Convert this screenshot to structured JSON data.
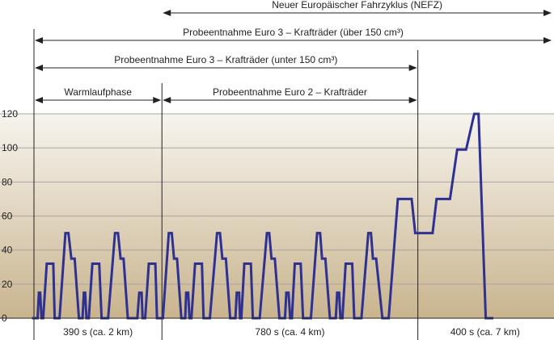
{
  "colors": {
    "line": "#2e3192",
    "grid": "#a6a6a6",
    "bg_top": "#f7f4ee",
    "bg_bottom": "#c9b48e",
    "rule": "#222222"
  },
  "chart_data": {
    "type": "line",
    "xlabel": "",
    "ylabel": "",
    "xlim": [
      0,
      1580
    ],
    "ylim": [
      0,
      120
    ],
    "yticks": [
      0,
      20,
      40,
      60,
      80,
      100,
      120
    ],
    "grid": true,
    "series": [
      {
        "values": [
          [
            -6,
            0
          ],
          [
            11,
            0
          ],
          [
            15,
            15
          ],
          [
            19,
            15
          ],
          [
            23,
            0
          ],
          [
            28,
            0
          ],
          [
            39,
            32
          ],
          [
            59,
            32
          ],
          [
            63,
            0
          ],
          [
            78,
            0
          ],
          [
            96,
            50
          ],
          [
            105,
            50
          ],
          [
            114,
            35
          ],
          [
            124,
            35
          ],
          [
            137,
            0
          ],
          [
            148,
            0
          ],
          [
            152,
            15
          ],
          [
            156,
            15
          ],
          [
            160,
            0
          ],
          [
            167,
            0
          ],
          [
            178,
            32
          ],
          [
            199,
            32
          ],
          [
            206,
            0
          ],
          [
            226,
            0
          ],
          [
            247,
            50
          ],
          [
            256,
            50
          ],
          [
            264,
            35
          ],
          [
            273,
            35
          ],
          [
            286,
            0
          ],
          [
            315,
            0
          ],
          [
            321,
            15
          ],
          [
            328,
            15
          ],
          [
            331,
            0
          ],
          [
            339,
            0
          ],
          [
            350,
            32
          ],
          [
            370,
            32
          ],
          [
            375,
            0
          ],
          [
            393,
            0
          ],
          [
            411,
            50
          ],
          [
            420,
            50
          ],
          [
            427,
            35
          ],
          [
            436,
            35
          ],
          [
            449,
            0
          ],
          [
            461,
            0
          ],
          [
            464,
            15
          ],
          [
            470,
            15
          ],
          [
            474,
            0
          ],
          [
            480,
            0
          ],
          [
            491,
            32
          ],
          [
            512,
            32
          ],
          [
            517,
            0
          ],
          [
            536,
            0
          ],
          [
            558,
            50
          ],
          [
            567,
            50
          ],
          [
            574,
            35
          ],
          [
            585,
            35
          ],
          [
            598,
            0
          ],
          [
            614,
            0
          ],
          [
            618,
            15
          ],
          [
            625,
            15
          ],
          [
            628,
            0
          ],
          [
            632,
            0
          ],
          [
            641,
            32
          ],
          [
            661,
            32
          ],
          [
            667,
            0
          ],
          [
            688,
            0
          ],
          [
            710,
            50
          ],
          [
            717,
            50
          ],
          [
            724,
            35
          ],
          [
            734,
            35
          ],
          [
            748,
            0
          ],
          [
            765,
            0
          ],
          [
            769,
            15
          ],
          [
            776,
            15
          ],
          [
            781,
            0
          ],
          [
            786,
            0
          ],
          [
            795,
            32
          ],
          [
            813,
            32
          ],
          [
            820,
            0
          ],
          [
            844,
            0
          ],
          [
            863,
            50
          ],
          [
            872,
            50
          ],
          [
            878,
            35
          ],
          [
            888,
            35
          ],
          [
            902,
            0
          ],
          [
            920,
            0
          ],
          [
            924,
            15
          ],
          [
            930,
            15
          ],
          [
            934,
            0
          ],
          [
            940,
            0
          ],
          [
            950,
            32
          ],
          [
            970,
            32
          ],
          [
            976,
            0
          ],
          [
            998,
            0
          ],
          [
            1019,
            50
          ],
          [
            1027,
            50
          ],
          [
            1033,
            35
          ],
          [
            1043,
            35
          ],
          [
            1062,
            0
          ],
          [
            1081,
            0
          ],
          [
            1109,
            70
          ],
          [
            1151,
            70
          ],
          [
            1162,
            50
          ],
          [
            1215,
            50
          ],
          [
            1227,
            70
          ],
          [
            1268,
            70
          ],
          [
            1290,
            99
          ],
          [
            1317,
            99
          ],
          [
            1342,
            120
          ],
          [
            1355,
            120
          ],
          [
            1377,
            0
          ],
          [
            1400,
            0
          ]
        ]
      }
    ],
    "phase_markers": [
      0,
      390,
      1170
    ],
    "segment_labels": [
      {
        "text": "390 s (ca. 2 km)",
        "from": 0,
        "to": 390
      },
      {
        "text": "780 s (ca. 4 km)",
        "from": 390,
        "to": 1170
      },
      {
        "text": "400 s (ca. 7 km)",
        "from": 1170,
        "to": 1580
      }
    ],
    "spans": [
      {
        "text": "Neuer Europäischer Fahrzyklus (NEFZ)",
        "from": 390,
        "to": 1580
      },
      {
        "text": "Probeentnahme Euro 3 – Krafträder (über 150 cm³)",
        "from": 0,
        "to": 1580
      },
      {
        "text": "Probeentnahme Euro 3 – Krafträder (unter 150 cm³)",
        "from": 0,
        "to": 1170
      },
      {
        "text": "Warmlaufphase",
        "from": 0,
        "to": 390
      },
      {
        "text": "Probeentnahme Euro 2 – Krafträder",
        "from": 390,
        "to": 1170
      }
    ]
  }
}
